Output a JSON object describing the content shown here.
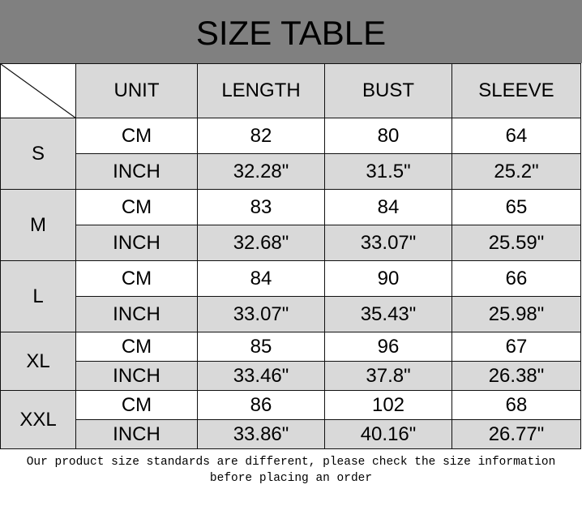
{
  "title": "SIZE TABLE",
  "headers": [
    "UNIT",
    "LENGTH",
    "BUST",
    "SLEEVE"
  ],
  "rows": [
    {
      "size": "S",
      "cm": [
        "CM",
        "82",
        "80",
        "64"
      ],
      "inch": [
        "INCH",
        "32.28\"",
        "31.5\"",
        "25.2\""
      ]
    },
    {
      "size": "M",
      "cm": [
        "CM",
        "83",
        "84",
        "65"
      ],
      "inch": [
        "INCH",
        "32.68\"",
        "33.07\"",
        "25.59\""
      ]
    },
    {
      "size": "L",
      "cm": [
        "CM",
        "84",
        "90",
        "66"
      ],
      "inch": [
        "INCH",
        "33.07\"",
        "35.43\"",
        "25.98\""
      ]
    },
    {
      "size": "XL",
      "cm": [
        "CM",
        "85",
        "96",
        "67"
      ],
      "inch": [
        "INCH",
        "33.46\"",
        "37.8\"",
        "26.38\""
      ]
    },
    {
      "size": "XXL",
      "cm": [
        "CM",
        "86",
        "102",
        "68"
      ],
      "inch": [
        "INCH",
        "33.86\"",
        "40.16\"",
        "26.77\""
      ]
    }
  ],
  "footer": [
    "Our product size standards are different, please check the size information",
    "before placing an order"
  ],
  "colors": {
    "title_bg": "#808080",
    "shade": "#d9d9d9"
  }
}
